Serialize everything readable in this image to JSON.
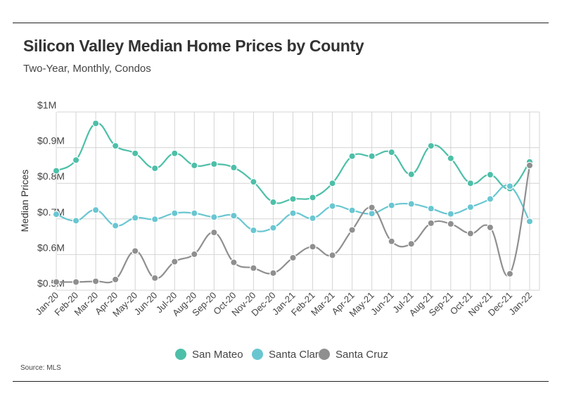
{
  "header": {
    "title": "Silicon Valley Median Home Prices by County",
    "subtitle": "Two-Year, Monthly, Condos"
  },
  "footer": {
    "source": "Source:  MLS"
  },
  "colors": {
    "San Mateo": "#4dbfa8",
    "Santa Clara": "#69c6d1",
    "Santa Cruz": "#8f8f8f",
    "grid": "#d4d4d4"
  },
  "chart_data": {
    "type": "line",
    "title": "Silicon Valley Median Home Prices by County",
    "subtitle": "Two-Year, Monthly, Condos",
    "xlabel": "",
    "ylabel": "Median Prices",
    "ylim": [
      0.5,
      1.0
    ],
    "yticks": [
      {
        "value": 1.0,
        "label": "$1M"
      },
      {
        "value": 0.9,
        "label": "$0.9M"
      },
      {
        "value": 0.8,
        "label": "$0.8M"
      },
      {
        "value": 0.7,
        "label": "$0.7M"
      },
      {
        "value": 0.6,
        "label": "$0.6M"
      },
      {
        "value": 0.5,
        "label": "$0.5M"
      }
    ],
    "grid": true,
    "legend_position": "bottom-center",
    "categories": [
      "Jan-20",
      "Feb-20",
      "Mar-20",
      "Apr-20",
      "May-20",
      "Jun-20",
      "Jul-20",
      "Aug-20",
      "Sep-20",
      "Oct-20",
      "Nov-20",
      "Dec-20",
      "Jan-21",
      "Feb-21",
      "Mar-21",
      "Apr-21",
      "May-21",
      "Jun-21",
      "Jul-21",
      "Aug-21",
      "Sep-21",
      "Oct-21",
      "Nov-21",
      "Dec-21",
      "Jan-22"
    ],
    "series": [
      {
        "name": "San Mateo",
        "values": [
          0.835,
          0.865,
          0.968,
          0.905,
          0.884,
          0.842,
          0.884,
          0.85,
          0.854,
          0.844,
          0.804,
          0.747,
          0.756,
          0.76,
          0.8,
          0.876,
          0.876,
          0.887,
          0.825,
          0.905,
          0.87,
          0.8,
          0.824,
          0.785,
          0.86
        ]
      },
      {
        "name": "Santa Clara",
        "values": [
          0.713,
          0.695,
          0.725,
          0.681,
          0.703,
          0.699,
          0.716,
          0.716,
          0.705,
          0.709,
          0.668,
          0.675,
          0.716,
          0.702,
          0.736,
          0.724,
          0.715,
          0.738,
          0.742,
          0.729,
          0.714,
          0.733,
          0.756,
          0.792,
          0.693
        ]
      },
      {
        "name": "Santa Cruz",
        "values": [
          0.523,
          0.523,
          0.525,
          0.53,
          0.61,
          0.534,
          0.58,
          0.601,
          0.662,
          0.578,
          0.562,
          0.548,
          0.591,
          0.622,
          0.598,
          0.669,
          0.732,
          0.637,
          0.63,
          0.688,
          0.686,
          0.659,
          0.676,
          0.546,
          0.85
        ]
      }
    ]
  }
}
